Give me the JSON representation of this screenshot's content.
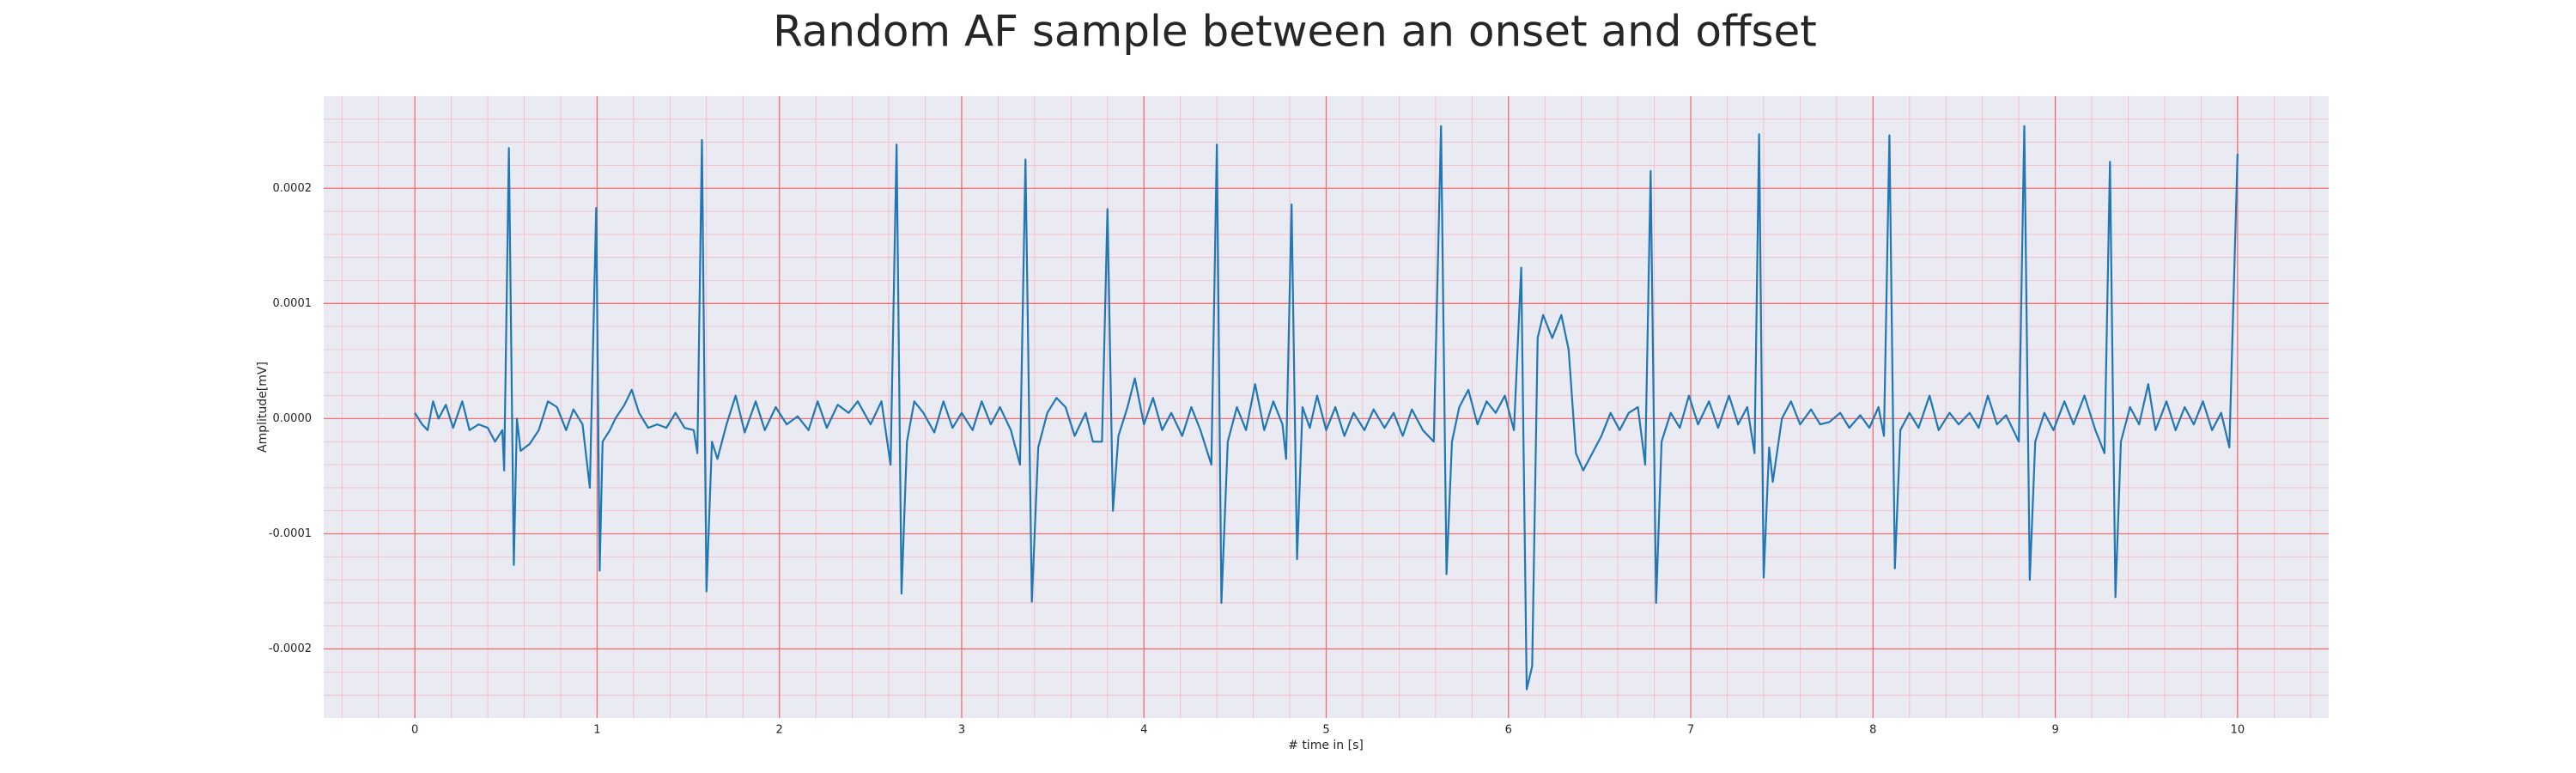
{
  "chart_data": {
    "type": "line",
    "title": "Random AF sample between an onset and offset",
    "xlabel": "# time in [s]",
    "ylabel": "Amplitude[mV]",
    "xlim": [
      -0.5,
      10.5
    ],
    "ylim": [
      -0.00026,
      0.00028
    ],
    "xticks": [
      0,
      1,
      2,
      3,
      4,
      5,
      6,
      7,
      8,
      9,
      10
    ],
    "yticks": [
      -0.0002,
      -0.0001,
      {
        "value": 0,
        "label": "0.0000"
      },
      0.0001,
      0.0002
    ],
    "grid": true,
    "grid_color": "#f07070",
    "minor_grid": {
      "x_step": 0.2,
      "y_step": 2e-05,
      "color": "#f5b8c4"
    },
    "background": "#eaeaf2",
    "series": [
      {
        "color": "#1f77b4",
        "x": [
          0.0,
          0.04,
          0.07,
          0.1,
          0.13,
          0.17,
          0.21,
          0.26,
          0.3,
          0.35,
          0.4,
          0.44,
          0.48,
          0.49,
          0.516,
          0.543,
          0.56,
          0.58,
          0.63,
          0.68,
          0.73,
          0.78,
          0.83,
          0.87,
          0.92,
          0.96,
          0.995,
          1.014,
          1.03,
          1.07,
          1.1,
          1.15,
          1.19,
          1.23,
          1.28,
          1.33,
          1.38,
          1.43,
          1.48,
          1.53,
          1.55,
          1.575,
          1.6,
          1.63,
          1.66,
          1.71,
          1.76,
          1.81,
          1.87,
          1.92,
          1.98,
          2.04,
          2.1,
          2.16,
          2.21,
          2.26,
          2.32,
          2.38,
          2.43,
          2.5,
          2.56,
          2.61,
          2.643,
          2.67,
          2.7,
          2.74,
          2.79,
          2.85,
          2.9,
          2.95,
          3.0,
          3.06,
          3.11,
          3.16,
          3.21,
          3.27,
          3.32,
          3.35,
          3.385,
          3.42,
          3.47,
          3.52,
          3.57,
          3.62,
          3.68,
          3.72,
          3.77,
          3.8,
          3.83,
          3.86,
          3.91,
          3.95,
          4.0,
          4.05,
          4.1,
          4.15,
          4.21,
          4.26,
          4.31,
          4.37,
          4.4,
          4.425,
          4.46,
          4.51,
          4.56,
          4.61,
          4.66,
          4.71,
          4.76,
          4.78,
          4.81,
          4.84,
          4.87,
          4.91,
          4.95,
          5.0,
          5.05,
          5.1,
          5.15,
          5.21,
          5.26,
          5.32,
          5.37,
          5.42,
          5.47,
          5.53,
          5.59,
          5.63,
          5.66,
          5.69,
          5.73,
          5.78,
          5.83,
          5.88,
          5.93,
          5.98,
          6.03,
          6.07,
          6.1,
          6.13,
          6.16,
          6.19,
          6.24,
          6.29,
          6.33,
          6.37,
          6.41,
          6.46,
          6.51,
          6.56,
          6.61,
          6.66,
          6.71,
          6.75,
          6.78,
          6.81,
          6.84,
          6.89,
          6.94,
          6.99,
          7.04,
          7.1,
          7.15,
          7.21,
          7.26,
          7.31,
          7.35,
          7.375,
          7.4,
          7.43,
          7.45,
          7.5,
          7.55,
          7.6,
          7.66,
          7.71,
          7.76,
          7.82,
          7.87,
          7.93,
          7.98,
          8.03,
          8.06,
          8.09,
          8.12,
          8.15,
          8.2,
          8.25,
          8.31,
          8.36,
          8.42,
          8.47,
          8.53,
          8.58,
          8.63,
          8.68,
          8.73,
          8.8,
          8.83,
          8.86,
          8.89,
          8.94,
          8.99,
          9.05,
          9.1,
          9.16,
          9.22,
          9.27,
          9.3,
          9.33,
          9.36,
          9.41,
          9.46,
          9.51,
          9.55,
          9.61,
          9.66,
          9.71,
          9.76,
          9.81,
          9.86,
          9.91,
          9.955,
          10.0
        ],
        "values": [
          5e-06,
          -5e-06,
          -1e-05,
          1.5e-05,
          0.0,
          1.2e-05,
          -8e-06,
          1.5e-05,
          -1e-05,
          -5e-06,
          -8e-06,
          -2e-05,
          -1e-05,
          -4.5e-05,
          0.000235,
          -0.000127,
          0.0,
          -2.8e-05,
          -2.2e-05,
          -1e-05,
          1.5e-05,
          1e-05,
          -1e-05,
          8e-06,
          -5e-06,
          -6e-05,
          0.000183,
          -0.000132,
          -2e-05,
          -1e-05,
          0.0,
          1.2e-05,
          2.5e-05,
          5e-06,
          -8e-06,
          -5e-06,
          -8e-06,
          5e-06,
          -8e-06,
          -1e-05,
          -3e-05,
          0.000242,
          -0.00015,
          -2e-05,
          -3.5e-05,
          -5e-06,
          2e-05,
          -1.2e-05,
          1.5e-05,
          -1e-05,
          1e-05,
          -5e-06,
          2e-06,
          -1e-05,
          1.5e-05,
          -8e-06,
          1.2e-05,
          5e-06,
          1.5e-05,
          -5e-06,
          1.5e-05,
          -4e-05,
          0.000238,
          -0.000152,
          -2e-05,
          1.5e-05,
          5e-06,
          -1.2e-05,
          1.5e-05,
          -8e-06,
          5e-06,
          -1e-05,
          1.5e-05,
          -5e-06,
          1e-05,
          -1e-05,
          -4e-05,
          0.000225,
          -0.000159,
          -2.5e-05,
          5e-06,
          1.8e-05,
          1e-05,
          -1.5e-05,
          5e-06,
          -2e-05,
          -2e-05,
          0.000182,
          -8e-05,
          -1.5e-05,
          1e-05,
          3.5e-05,
          -5e-06,
          1.8e-05,
          -1e-05,
          5e-06,
          -1.5e-05,
          1e-05,
          -1e-05,
          -4e-05,
          0.000238,
          -0.00016,
          -2e-05,
          1e-05,
          -1e-05,
          3e-05,
          -1e-05,
          1.5e-05,
          -5e-06,
          -3.5e-05,
          0.000186,
          -0.000122,
          1e-05,
          -8e-06,
          2e-05,
          -1e-05,
          1e-05,
          -1.5e-05,
          5e-06,
          -1e-05,
          8e-06,
          -8e-06,
          5e-06,
          -1.5e-05,
          8e-06,
          -1e-05,
          -2e-05,
          0.000254,
          -0.000135,
          -2e-05,
          1e-05,
          2.5e-05,
          -5e-06,
          1.5e-05,
          5e-06,
          2e-05,
          -1e-05,
          0.000131,
          -0.000235,
          -0.000215,
          7e-05,
          9e-05,
          7e-05,
          9e-05,
          6e-05,
          -3e-05,
          -4.5e-05,
          -3e-05,
          -1.5e-05,
          5e-06,
          -1e-05,
          5e-06,
          1e-05,
          -4e-05,
          0.000215,
          -0.00016,
          -2e-05,
          5e-06,
          -8e-06,
          2e-05,
          -5e-06,
          1.5e-05,
          -8e-06,
          2e-05,
          -5e-06,
          1e-05,
          -3e-05,
          0.000247,
          -0.000138,
          -2.5e-05,
          -5.5e-05,
          0.0,
          1.5e-05,
          -5e-06,
          8e-06,
          -5e-06,
          -3e-06,
          5e-06,
          -8e-06,
          3e-06,
          -8e-06,
          1e-05,
          -1.5e-05,
          0.000246,
          -0.00013,
          -1e-05,
          5e-06,
          -8e-06,
          2e-05,
          -1e-05,
          5e-06,
          -5e-06,
          5e-06,
          -8e-06,
          2e-05,
          -5e-06,
          3e-06,
          -2e-05,
          0.000254,
          -0.00014,
          -2e-05,
          5e-06,
          -1e-05,
          1.5e-05,
          -5e-06,
          2e-05,
          -1e-05,
          -3e-05,
          0.000223,
          -0.000155,
          -2e-05,
          1e-05,
          -5e-06,
          3e-05,
          -1e-05,
          1.5e-05,
          -1e-05,
          1e-05,
          -5e-06,
          1.5e-05,
          -1e-05,
          5e-06,
          -2.5e-05,
          0.00023
        ]
      }
    ]
  }
}
